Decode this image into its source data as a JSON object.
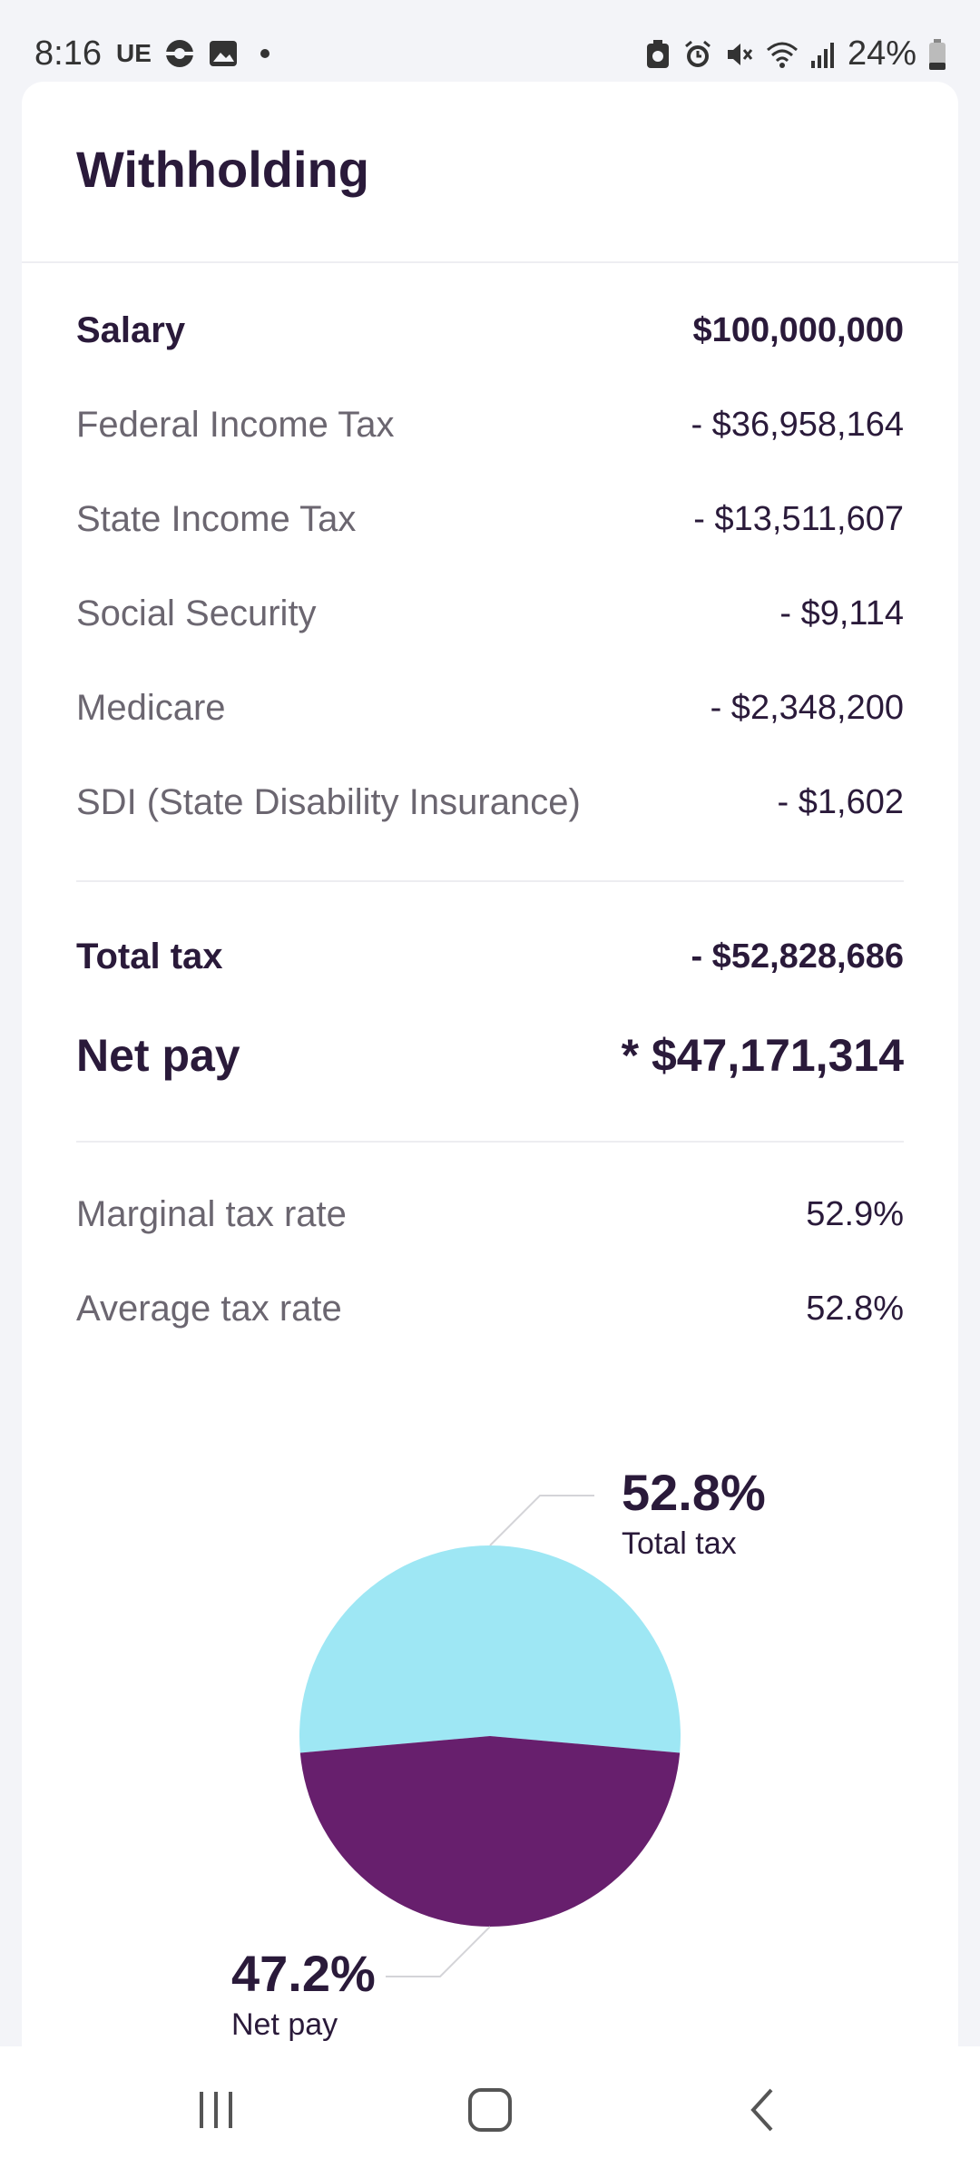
{
  "status_bar": {
    "time": "8:16",
    "carrier": "UE",
    "battery": "24%",
    "left_icons": [
      "sync-icon",
      "image-icon",
      "dot-icon"
    ],
    "right_icons": [
      "battery-saver-icon",
      "alarm-icon",
      "mute-icon",
      "wifi-icon",
      "signal-icon",
      "battery-icon"
    ]
  },
  "page": {
    "title": "Withholding"
  },
  "rows": {
    "salary": {
      "label": "Salary",
      "value": "$100,000,000"
    },
    "federal": {
      "label": "Federal Income Tax",
      "value": "- $36,958,164"
    },
    "state": {
      "label": "State Income Tax",
      "value": "- $13,511,607"
    },
    "social": {
      "label": "Social Security",
      "value": "- $9,114"
    },
    "medicare": {
      "label": "Medicare",
      "value": "- $2,348,200"
    },
    "sdi": {
      "label": "SDI (State Disability Insurance)",
      "value": "- $1,602"
    },
    "total_tax": {
      "label": "Total tax",
      "value": "- $52,828,686"
    },
    "net_pay": {
      "label": "Net pay",
      "value": "* $47,171,314"
    },
    "marginal": {
      "label": "Marginal tax rate",
      "value": "52.9%"
    },
    "average": {
      "label": "Average tax rate",
      "value": "52.8%"
    }
  },
  "chart_data": {
    "type": "pie",
    "slices": [
      {
        "label": "Total tax",
        "value": 52.8,
        "display": "52.8%",
        "color": "#9ee7f4"
      },
      {
        "label": "Net pay",
        "value": 47.2,
        "display": "47.2%",
        "color": "#671f6d"
      }
    ],
    "legend": "callout labels"
  },
  "nav": {
    "icons": [
      "recents-icon",
      "home-icon",
      "back-icon"
    ]
  }
}
